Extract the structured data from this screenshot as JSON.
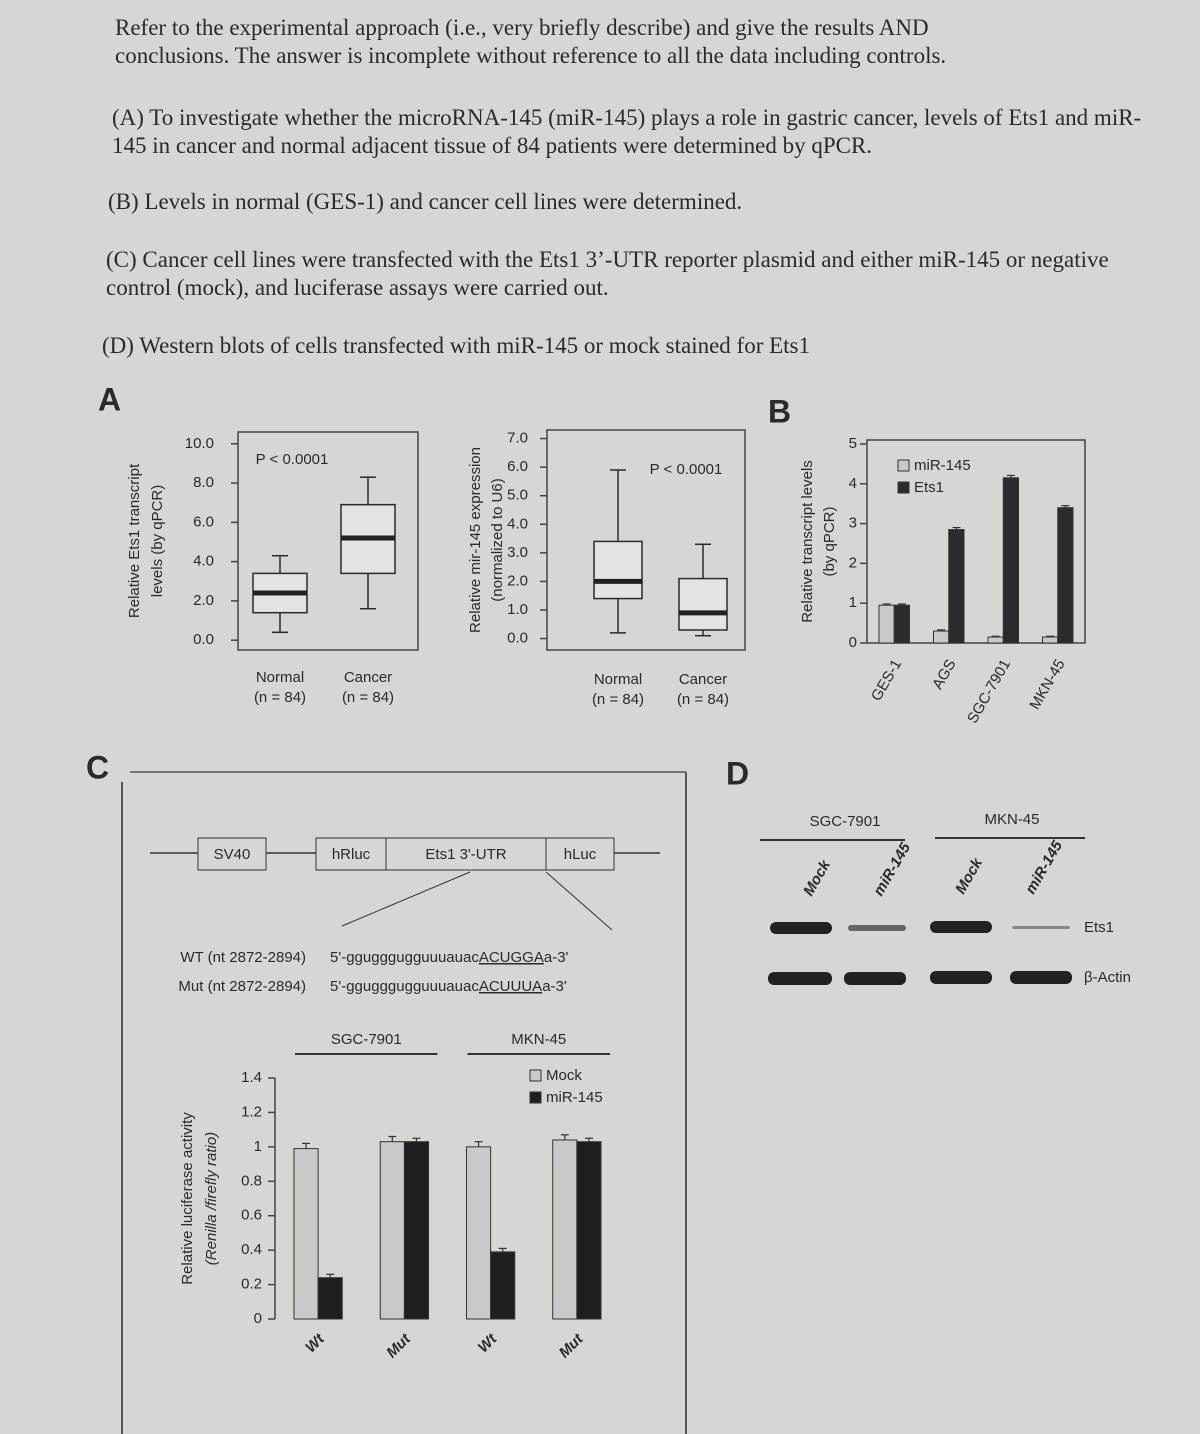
{
  "text": {
    "intro": "Refer to the experimental approach (i.e., very briefly describe) and give the results AND conclusions. The answer is incomplete without reference to all the data including controls.",
    "items": [
      "(A) To investigate whether the microRNA-145 (miR-145) plays a role in gastric cancer, levels of Ets1 and miR-145 in cancer and normal adjacent tissue of 84 patients were determined by qPCR.",
      "(B) Levels in normal (GES-1) and cancer cell lines were determined.",
      "(C) Cancer cell lines were transfected with the Ets1 3’-UTR reporter plasmid and either miR-145 or negative control (mock), and luciferase assays were carried out.",
      "(D) Western blots of cells transfected with miR-145 or mock stained for Ets1"
    ]
  },
  "panel_labels": [
    "A",
    "B",
    "C",
    "D"
  ],
  "chart_data": [
    {
      "type": "box",
      "ylabel": [
        "Relative Ets1 transcript",
        "levels (by qPCR)"
      ],
      "annotation": "P < 0.0001",
      "categories": [
        "Normal",
        "Cancer"
      ],
      "category_notes": [
        "(n = 84)",
        "(n = 84)"
      ],
      "boxes": [
        {
          "low": 0.4,
          "q1": 1.4,
          "median": 2.4,
          "q3": 3.4,
          "high": 4.3
        },
        {
          "low": 1.6,
          "q1": 3.4,
          "median": 5.2,
          "q3": 6.9,
          "high": 8.3
        }
      ],
      "ylim": [
        -0.5,
        10.6
      ],
      "yticks": [
        {
          "value": 0,
          "label": "0.0"
        },
        {
          "value": 2,
          "label": "2.0"
        },
        {
          "value": 4,
          "label": "4.0"
        },
        {
          "value": 6,
          "label": "6.0"
        },
        {
          "value": 8,
          "label": "8.0"
        },
        {
          "value": 10,
          "label": "10.0"
        }
      ]
    },
    {
      "type": "box",
      "ylabel": [
        "Relative mir-145 expression",
        "(normalized to U6)"
      ],
      "annotation": "P < 0.0001",
      "categories": [
        "Normal",
        "Cancer"
      ],
      "category_notes": [
        "(n = 84)",
        "(n = 84)"
      ],
      "boxes": [
        {
          "low": 0.2,
          "q1": 1.4,
          "median": 2.0,
          "q3": 3.4,
          "high": 5.9
        },
        {
          "low": 0.1,
          "q1": 0.3,
          "median": 0.9,
          "q3": 2.1,
          "high": 3.3
        }
      ],
      "ylim": [
        -0.4,
        7.3
      ],
      "yticks": [
        {
          "value": 0,
          "label": "0.0"
        },
        {
          "value": 1,
          "label": "1.0"
        },
        {
          "value": 2,
          "label": "2.0"
        },
        {
          "value": 3,
          "label": "3.0"
        },
        {
          "value": 4,
          "label": "4.0"
        },
        {
          "value": 5,
          "label": "5.0"
        },
        {
          "value": 6,
          "label": "6.0"
        },
        {
          "value": 7,
          "label": "7.0"
        }
      ]
    },
    {
      "type": "bar",
      "ylabel": [
        "Relative transcript levels",
        "(by qPCR)"
      ],
      "categories": [
        "GES-1",
        "AGS",
        "SGC-7901",
        "MKN-45"
      ],
      "series": [
        {
          "name": "miR-145",
          "color": "#c9c9c9",
          "values": [
            0.95,
            0.3,
            0.15,
            0.15
          ],
          "errors": [
            0.03,
            0.03,
            0.02,
            0.02
          ]
        },
        {
          "name": "Ets1",
          "color": "#2b2b2b",
          "values": [
            0.95,
            2.85,
            4.15,
            3.4
          ],
          "errors": [
            0.03,
            0.05,
            0.06,
            0.05
          ]
        }
      ],
      "ylim": [
        0,
        5.1
      ],
      "yticks": [
        0,
        1,
        2,
        3,
        4,
        5
      ],
      "legend": "top-left"
    },
    {
      "type": "bar",
      "ylabel": [
        "Relative luciferase activity",
        "(Renilla /firefly ratio)"
      ],
      "groups": [
        {
          "name": "SGC-7901",
          "categories": [
            "Wt",
            "Mut"
          ]
        },
        {
          "name": "MKN-45",
          "categories": [
            "Wt",
            "Mut"
          ]
        }
      ],
      "series": [
        {
          "name": "Mock",
          "color": "#c9c9c9",
          "values": [
            0.99,
            1.03,
            1.0,
            1.04
          ],
          "errors": [
            0.03,
            0.03,
            0.03,
            0.03
          ]
        },
        {
          "name": "miR-145",
          "color": "#1e1e1e",
          "values": [
            0.24,
            1.03,
            0.39,
            1.03
          ],
          "errors": [
            0.02,
            0.02,
            0.02,
            0.02
          ]
        }
      ],
      "ylim": [
        0,
        1.4
      ],
      "yticks": [
        0,
        0.2,
        0.4,
        0.6,
        0.8,
        1,
        1.2,
        1.4
      ],
      "legend": "top-right"
    }
  ],
  "construct": {
    "elements": [
      "SV40",
      "hRluc",
      "Ets1 3'-UTR",
      "hLuc"
    ],
    "sequences": [
      {
        "label": "WT (nt 2872-2894)",
        "prefix": "5'-ggugggugguuuauac",
        "site": "ACUGGA",
        "suffix": "a-3'"
      },
      {
        "label": "Mut (nt 2872-2894)",
        "prefix": "5'-ggugggugguuuauac",
        "site": "ACUUUA",
        "suffix": "a-3'"
      }
    ]
  },
  "western": {
    "groups": [
      "SGC-7901",
      "MKN-45"
    ],
    "lanes": [
      "Mock",
      "miR-145",
      "Mock",
      "miR-145"
    ],
    "rows": [
      "Ets1",
      "β-Actin"
    ]
  }
}
